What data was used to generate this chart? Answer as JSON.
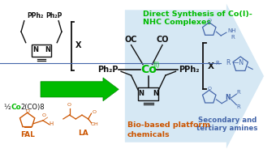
{
  "bg_color": "#ffffff",
  "green_text_line1": "Direct Synthesis of Co(I)-",
  "green_text_line2": "NHC Complexes",
  "green_color": "#00bb00",
  "orange_color": "#cc5500",
  "blue_color": "#7bafd4",
  "dark_blue": "#4466aa",
  "cobalt_color": "#00bb00",
  "black": "#111111",
  "bio_text_line1": "Bio-based platform",
  "bio_text_line2": "chemicals",
  "secondary_text_line1": "Secondary and",
  "secondary_text_line2": "tertiary amines",
  "co2co8_text1": "½ ",
  "co2co8_text2": "Co",
  "co2co8_text3": "2(CO)8",
  "fal_text": "FAL",
  "la_text": "LA",
  "oc_text": "OC",
  "co_text": "CO",
  "pph2_left": "Ph₂P",
  "pph2_right": "PPh₂",
  "pph2_top_left": "PPh₂",
  "ph2p_top_right": "Ph₂P",
  "n_text": "N",
  "x_text": "X"
}
